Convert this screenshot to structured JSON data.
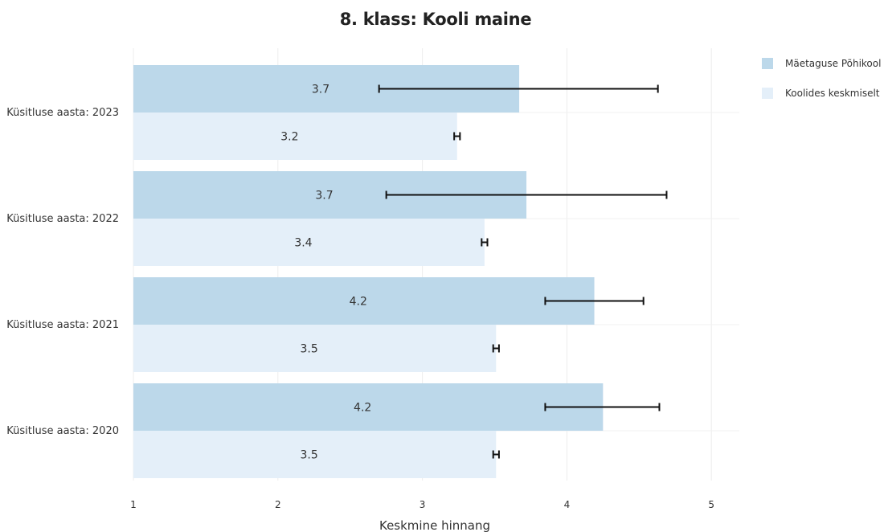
{
  "chart_data": {
    "type": "bar",
    "orientation": "horizontal",
    "title": "8. klass: Kooli maine",
    "xlabel": "Keskmine hinnang",
    "ylabel": "",
    "xlim": [
      1,
      5.2
    ],
    "xticks": [
      1,
      2,
      3,
      4,
      5
    ],
    "grid": true,
    "legend_position": "top-right",
    "categories": [
      "Küsitluse aasta: 2023",
      "Küsitluse aasta: 2022",
      "Küsitluse aasta: 2021",
      "Küsitluse aasta: 2020"
    ],
    "series": [
      {
        "name": "Mäetaguse Põhikool",
        "color": "#bcd8ea",
        "values": [
          3.67,
          3.72,
          4.19,
          4.25
        ],
        "labels": [
          "3.7",
          "3.7",
          "4.2",
          "4.2"
        ],
        "error_low": [
          2.7,
          2.75,
          3.85,
          3.85
        ],
        "error_high": [
          4.63,
          4.69,
          4.53,
          4.64
        ]
      },
      {
        "name": "Koolides keskmiselt",
        "color": "#e4eff9",
        "values": [
          3.24,
          3.43,
          3.51,
          3.51
        ],
        "labels": [
          "3.2",
          "3.4",
          "3.5",
          "3.5"
        ],
        "error_low": [
          3.22,
          3.41,
          3.49,
          3.49
        ],
        "error_high": [
          3.26,
          3.45,
          3.53,
          3.53
        ]
      }
    ]
  }
}
